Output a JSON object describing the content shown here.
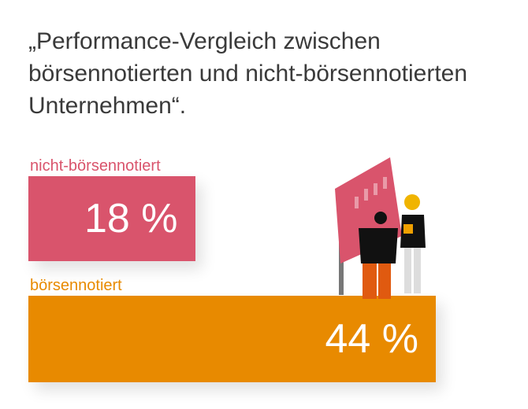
{
  "title": "„Performance-Vergleich zwischen börsennotierten und nicht-börsennotierten Unternehmen“.",
  "chart_data": {
    "type": "bar",
    "orientation": "horizontal",
    "categories": [
      "nicht-börsennotiert",
      "börsennotiert"
    ],
    "values": [
      18,
      44
    ],
    "value_labels": [
      "18 %",
      "44 %"
    ],
    "colors": [
      "#d9546c",
      "#e88a00"
    ]
  }
}
